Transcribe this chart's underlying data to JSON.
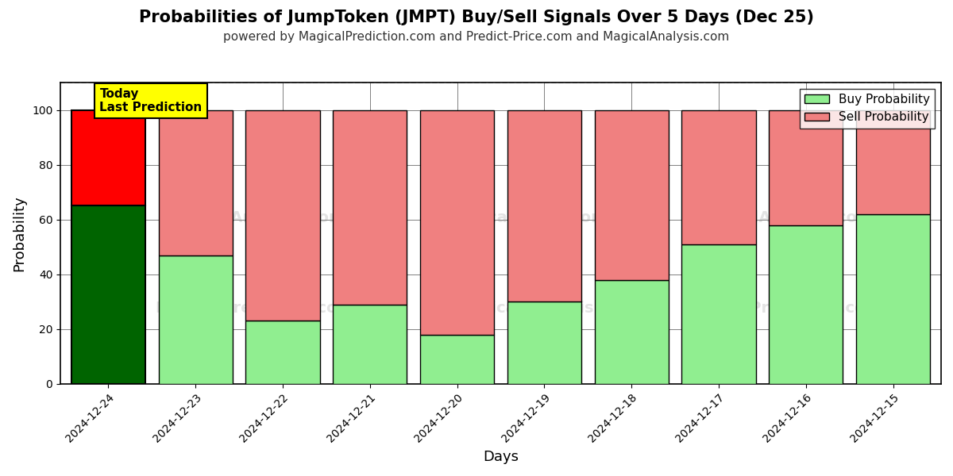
{
  "title": "Probabilities of JumpToken (JMPT) Buy/Sell Signals Over 5 Days (Dec 25)",
  "subtitle": "powered by MagicalPrediction.com and Predict-Price.com and MagicalAnalysis.com",
  "xlabel": "Days",
  "ylabel": "Probability",
  "categories": [
    "2024-12-24",
    "2024-12-23",
    "2024-12-22",
    "2024-12-21",
    "2024-12-20",
    "2024-12-19",
    "2024-12-18",
    "2024-12-17",
    "2024-12-16",
    "2024-12-15"
  ],
  "buy_values": [
    65,
    47,
    23,
    29,
    18,
    30,
    38,
    51,
    58,
    62
  ],
  "sell_values": [
    35,
    53,
    77,
    71,
    82,
    70,
    62,
    49,
    42,
    38
  ],
  "today_buy_color": "#006400",
  "today_sell_color": "#FF0000",
  "buy_color": "#90EE90",
  "sell_color": "#F08080",
  "today_bar_edgecolor": "#000000",
  "bar_edgecolor": "#000000",
  "today_annotation_text": "Today\nLast Prediction",
  "today_annotation_bg": "#FFFF00",
  "legend_buy_label": "Buy Probability",
  "legend_sell_label": "Sell Probability",
  "ylim": [
    0,
    110
  ],
  "dashed_line_y": 110,
  "background_color": "#ffffff",
  "grid_color": "#808080",
  "title_fontsize": 15,
  "subtitle_fontsize": 11,
  "axis_label_fontsize": 13,
  "tick_fontsize": 10,
  "legend_fontsize": 11,
  "bar_width": 0.85
}
